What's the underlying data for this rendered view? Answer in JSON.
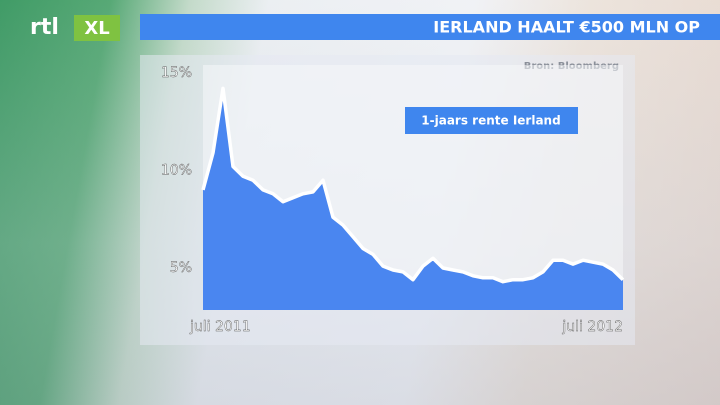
{
  "logo": [
    "rtl",
    "XL"
  ],
  "chart_data": {
    "type": "area",
    "title": "IERLAND HAALT €500 MLN OP",
    "source": "Bron: Bloomberg",
    "annotation": "1-jaars rente Ierland",
    "categories": [
      "juli 2011",
      null,
      null,
      null,
      null,
      null,
      null,
      null,
      null,
      null,
      null,
      null,
      null,
      null,
      null,
      null,
      null,
      null,
      null,
      null,
      null,
      null,
      null,
      null,
      null,
      null,
      null,
      null,
      null,
      null,
      null,
      null,
      null,
      null,
      null,
      null,
      null,
      null,
      null,
      null,
      null,
      null,
      "juli 2012"
    ],
    "values": [
      9.0,
      10.9,
      14.2,
      10.2,
      9.7,
      9.5,
      9.0,
      8.8,
      8.4,
      8.6,
      8.8,
      8.9,
      9.5,
      7.6,
      7.2,
      6.6,
      6.0,
      5.7,
      5.1,
      4.9,
      4.8,
      4.4,
      5.1,
      5.5,
      5.0,
      4.9,
      4.8,
      4.6,
      4.5,
      4.5,
      4.3,
      4.4,
      4.4,
      4.5,
      4.8,
      5.4,
      5.4,
      5.2,
      5.4,
      5.3,
      5.2,
      4.9,
      4.4
    ],
    "color": "#4a86f0",
    "line_color": "#ffffff",
    "ylim": [
      2.85,
      15.4
    ],
    "yticks": [
      {
        "value": 5,
        "label": "5%"
      },
      {
        "value": 10,
        "label": "10%"
      },
      {
        "value": 15,
        "label": "15%"
      }
    ]
  }
}
